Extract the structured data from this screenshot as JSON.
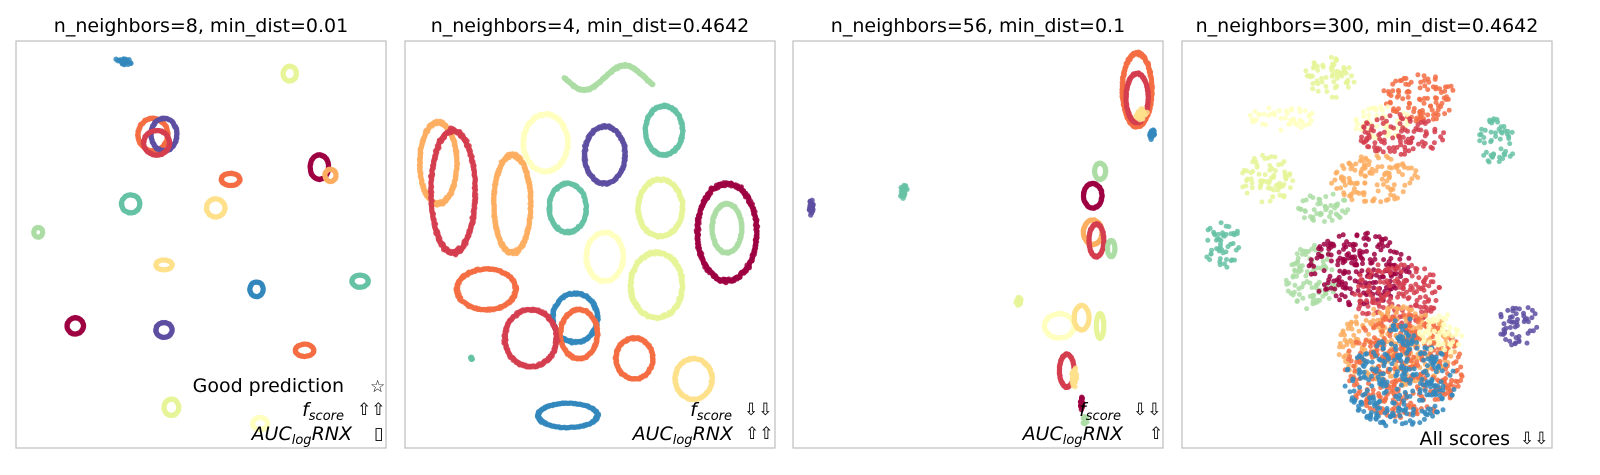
{
  "colors": [
    "#9e0142",
    "#d53e4f",
    "#f46d43",
    "#fdae61",
    "#fee08b",
    "#ffffbf",
    "#e6f598",
    "#abdda4",
    "#66c2a5",
    "#3288bd",
    "#5e4fa2"
  ],
  "chart_data": [
    {
      "type": "scatter",
      "title": "n_neighbors=8, min_dist=0.01",
      "xlim": [
        0,
        1
      ],
      "ylim": [
        0,
        1
      ],
      "annotations": [
        {
          "text": "Good prediction",
          "symbol": "☆"
        },
        {
          "base": "f",
          "sub": "score",
          "symbol": "⇧⇧"
        },
        {
          "base": "AUC",
          "sub": "log",
          "tail": "RNX",
          "symbol": "▯"
        }
      ],
      "clusters": [
        {
          "x": 0.29,
          "y": 0.95,
          "rx": 0.025,
          "ry": 0.012,
          "color": 9,
          "style": "blob"
        },
        {
          "x": 0.74,
          "y": 0.92,
          "rx": 0.018,
          "ry": 0.018,
          "color": 6,
          "style": "ring"
        },
        {
          "x": 0.37,
          "y": 0.77,
          "rx": 0.04,
          "ry": 0.04,
          "color": 2,
          "style": "ring"
        },
        {
          "x": 0.4,
          "y": 0.77,
          "rx": 0.035,
          "ry": 0.04,
          "color": 10,
          "style": "ring"
        },
        {
          "x": 0.38,
          "y": 0.75,
          "rx": 0.035,
          "ry": 0.03,
          "color": 1,
          "style": "ring"
        },
        {
          "x": 0.82,
          "y": 0.69,
          "rx": 0.025,
          "ry": 0.03,
          "color": 0,
          "style": "ring"
        },
        {
          "x": 0.85,
          "y": 0.67,
          "rx": 0.015,
          "ry": 0.015,
          "color": 3,
          "style": "ring"
        },
        {
          "x": 0.58,
          "y": 0.66,
          "rx": 0.025,
          "ry": 0.015,
          "color": 2,
          "style": "ring"
        },
        {
          "x": 0.31,
          "y": 0.6,
          "rx": 0.025,
          "ry": 0.022,
          "color": 8,
          "style": "ring"
        },
        {
          "x": 0.54,
          "y": 0.59,
          "rx": 0.025,
          "ry": 0.022,
          "color": 4,
          "style": "ring"
        },
        {
          "x": 0.06,
          "y": 0.53,
          "rx": 0.012,
          "ry": 0.012,
          "color": 7,
          "style": "ring"
        },
        {
          "x": 0.4,
          "y": 0.45,
          "rx": 0.022,
          "ry": 0.012,
          "color": 4,
          "style": "ring"
        },
        {
          "x": 0.65,
          "y": 0.39,
          "rx": 0.018,
          "ry": 0.018,
          "color": 9,
          "style": "ring"
        },
        {
          "x": 0.93,
          "y": 0.41,
          "rx": 0.022,
          "ry": 0.015,
          "color": 8,
          "style": "ring"
        },
        {
          "x": 0.16,
          "y": 0.3,
          "rx": 0.022,
          "ry": 0.02,
          "color": 0,
          "style": "ring"
        },
        {
          "x": 0.4,
          "y": 0.29,
          "rx": 0.022,
          "ry": 0.018,
          "color": 10,
          "style": "ring"
        },
        {
          "x": 0.78,
          "y": 0.24,
          "rx": 0.025,
          "ry": 0.015,
          "color": 2,
          "style": "ring"
        },
        {
          "x": 0.42,
          "y": 0.1,
          "rx": 0.02,
          "ry": 0.02,
          "color": 6,
          "style": "ring"
        },
        {
          "x": 0.66,
          "y": 0.06,
          "rx": 0.02,
          "ry": 0.015,
          "color": 5,
          "style": "ring"
        }
      ]
    },
    {
      "type": "scatter",
      "title": "n_neighbors=4, min_dist=0.4642",
      "xlim": [
        0,
        1
      ],
      "ylim": [
        0,
        1
      ],
      "annotations": [
        {
          "base": "f",
          "sub": "score",
          "symbol": "⇩⇩"
        },
        {
          "base": "AUC",
          "sub": "log",
          "tail": "RNX",
          "symbol": "⇧⇧"
        }
      ],
      "clusters": [
        {
          "x": 0.55,
          "y": 0.91,
          "rx": 0.12,
          "ry": 0.05,
          "color": 7,
          "style": "wave"
        },
        {
          "x": 0.7,
          "y": 0.78,
          "rx": 0.05,
          "ry": 0.06,
          "color": 8,
          "style": "ring"
        },
        {
          "x": 0.09,
          "y": 0.7,
          "rx": 0.05,
          "ry": 0.1,
          "color": 3,
          "style": "ring"
        },
        {
          "x": 0.13,
          "y": 0.63,
          "rx": 0.06,
          "ry": 0.15,
          "color": 1,
          "style": "ring"
        },
        {
          "x": 0.38,
          "y": 0.75,
          "rx": 0.06,
          "ry": 0.07,
          "color": 5,
          "style": "ring"
        },
        {
          "x": 0.54,
          "y": 0.72,
          "rx": 0.055,
          "ry": 0.07,
          "color": 10,
          "style": "ring"
        },
        {
          "x": 0.29,
          "y": 0.6,
          "rx": 0.05,
          "ry": 0.12,
          "color": 3,
          "style": "ring"
        },
        {
          "x": 0.44,
          "y": 0.59,
          "rx": 0.05,
          "ry": 0.06,
          "color": 8,
          "style": "ring"
        },
        {
          "x": 0.69,
          "y": 0.59,
          "rx": 0.06,
          "ry": 0.07,
          "color": 6,
          "style": "ring"
        },
        {
          "x": 0.87,
          "y": 0.53,
          "rx": 0.08,
          "ry": 0.12,
          "color": 0,
          "style": "ring"
        },
        {
          "x": 0.87,
          "y": 0.54,
          "rx": 0.04,
          "ry": 0.06,
          "color": 7,
          "style": "ring"
        },
        {
          "x": 0.54,
          "y": 0.47,
          "rx": 0.05,
          "ry": 0.06,
          "color": 5,
          "style": "ring"
        },
        {
          "x": 0.68,
          "y": 0.4,
          "rx": 0.07,
          "ry": 0.08,
          "color": 6,
          "style": "ring"
        },
        {
          "x": 0.22,
          "y": 0.39,
          "rx": 0.08,
          "ry": 0.05,
          "color": 2,
          "style": "ring"
        },
        {
          "x": 0.46,
          "y": 0.32,
          "rx": 0.06,
          "ry": 0.06,
          "color": 9,
          "style": "ring"
        },
        {
          "x": 0.47,
          "y": 0.28,
          "rx": 0.05,
          "ry": 0.06,
          "color": 2,
          "style": "ring"
        },
        {
          "x": 0.34,
          "y": 0.27,
          "rx": 0.07,
          "ry": 0.07,
          "color": 1,
          "style": "ring"
        },
        {
          "x": 0.62,
          "y": 0.22,
          "rx": 0.05,
          "ry": 0.05,
          "color": 2,
          "style": "ring"
        },
        {
          "x": 0.78,
          "y": 0.17,
          "rx": 0.05,
          "ry": 0.05,
          "color": 4,
          "style": "ring"
        },
        {
          "x": 0.44,
          "y": 0.08,
          "rx": 0.08,
          "ry": 0.03,
          "color": 9,
          "style": "ring"
        },
        {
          "x": 0.18,
          "y": 0.22,
          "rx": 0.005,
          "ry": 0.005,
          "color": 8,
          "style": "blob"
        }
      ]
    },
    {
      "type": "scatter",
      "title": "n_neighbors=56, min_dist=0.1",
      "xlim": [
        0,
        1
      ],
      "ylim": [
        0,
        1
      ],
      "annotations": [
        {
          "base": "f",
          "sub": "score",
          "symbol": "⇩⇩"
        },
        {
          "base": "AUC",
          "sub": "log",
          "tail": "RNX",
          "symbol": "⇧"
        }
      ],
      "clusters": [
        {
          "x": 0.93,
          "y": 0.88,
          "rx": 0.04,
          "ry": 0.09,
          "color": 2,
          "style": "ring"
        },
        {
          "x": 0.93,
          "y": 0.86,
          "rx": 0.03,
          "ry": 0.06,
          "color": 1,
          "style": "ring"
        },
        {
          "x": 0.94,
          "y": 0.82,
          "rx": 0.02,
          "ry": 0.02,
          "color": 4,
          "style": "blob"
        },
        {
          "x": 0.97,
          "y": 0.77,
          "rx": 0.01,
          "ry": 0.015,
          "color": 9,
          "style": "blob"
        },
        {
          "x": 0.83,
          "y": 0.68,
          "rx": 0.015,
          "ry": 0.02,
          "color": 7,
          "style": "ring"
        },
        {
          "x": 0.81,
          "y": 0.62,
          "rx": 0.025,
          "ry": 0.03,
          "color": 0,
          "style": "ring"
        },
        {
          "x": 0.81,
          "y": 0.53,
          "rx": 0.025,
          "ry": 0.03,
          "color": 3,
          "style": "ring"
        },
        {
          "x": 0.82,
          "y": 0.51,
          "rx": 0.02,
          "ry": 0.04,
          "color": 1,
          "style": "ring"
        },
        {
          "x": 0.86,
          "y": 0.49,
          "rx": 0.01,
          "ry": 0.02,
          "color": 7,
          "style": "ring"
        },
        {
          "x": 0.05,
          "y": 0.59,
          "rx": 0.008,
          "ry": 0.025,
          "color": 10,
          "style": "blob"
        },
        {
          "x": 0.3,
          "y": 0.63,
          "rx": 0.01,
          "ry": 0.02,
          "color": 8,
          "style": "blob"
        },
        {
          "x": 0.61,
          "y": 0.36,
          "rx": 0.01,
          "ry": 0.015,
          "color": 6,
          "style": "blob"
        },
        {
          "x": 0.72,
          "y": 0.3,
          "rx": 0.04,
          "ry": 0.03,
          "color": 5,
          "style": "ring"
        },
        {
          "x": 0.78,
          "y": 0.32,
          "rx": 0.02,
          "ry": 0.03,
          "color": 4,
          "style": "ring"
        },
        {
          "x": 0.83,
          "y": 0.3,
          "rx": 0.01,
          "ry": 0.03,
          "color": 6,
          "style": "ring"
        },
        {
          "x": 0.74,
          "y": 0.19,
          "rx": 0.02,
          "ry": 0.04,
          "color": 1,
          "style": "ring"
        },
        {
          "x": 0.76,
          "y": 0.17,
          "rx": 0.01,
          "ry": 0.03,
          "color": 4,
          "style": "blob"
        },
        {
          "x": 0.78,
          "y": 0.11,
          "rx": 0.005,
          "ry": 0.02,
          "color": 0,
          "style": "blob"
        },
        {
          "x": 0.79,
          "y": 0.07,
          "rx": 0.008,
          "ry": 0.015,
          "color": 7,
          "style": "blob"
        }
      ]
    },
    {
      "type": "scatter",
      "title": "n_neighbors=300, min_dist=0.4642",
      "xlim": [
        0,
        1
      ],
      "ylim": [
        0,
        1
      ],
      "annotations": [
        {
          "text": "All scores",
          "symbol": "⇩⇩"
        }
      ],
      "clusters": [
        {
          "x": 0.4,
          "y": 0.91,
          "rx": 0.07,
          "ry": 0.05,
          "color": 6,
          "style": "cloud"
        },
        {
          "x": 0.64,
          "y": 0.86,
          "rx": 0.1,
          "ry": 0.06,
          "color": 2,
          "style": "cloud"
        },
        {
          "x": 0.54,
          "y": 0.8,
          "rx": 0.08,
          "ry": 0.04,
          "color": 5,
          "style": "cloud"
        },
        {
          "x": 0.27,
          "y": 0.81,
          "rx": 0.09,
          "ry": 0.03,
          "color": 5,
          "style": "cloud"
        },
        {
          "x": 0.59,
          "y": 0.77,
          "rx": 0.12,
          "ry": 0.05,
          "color": 1,
          "style": "cloud"
        },
        {
          "x": 0.85,
          "y": 0.75,
          "rx": 0.05,
          "ry": 0.06,
          "color": 8,
          "style": "cloud"
        },
        {
          "x": 0.23,
          "y": 0.66,
          "rx": 0.07,
          "ry": 0.06,
          "color": 6,
          "style": "cloud"
        },
        {
          "x": 0.52,
          "y": 0.66,
          "rx": 0.12,
          "ry": 0.06,
          "color": 3,
          "style": "cloud"
        },
        {
          "x": 0.38,
          "y": 0.59,
          "rx": 0.07,
          "ry": 0.04,
          "color": 7,
          "style": "cloud"
        },
        {
          "x": 0.11,
          "y": 0.5,
          "rx": 0.05,
          "ry": 0.06,
          "color": 8,
          "style": "cloud"
        },
        {
          "x": 0.35,
          "y": 0.42,
          "rx": 0.07,
          "ry": 0.08,
          "color": 7,
          "style": "cloud"
        },
        {
          "x": 0.48,
          "y": 0.44,
          "rx": 0.14,
          "ry": 0.09,
          "color": 0,
          "style": "cloud"
        },
        {
          "x": 0.58,
          "y": 0.38,
          "rx": 0.12,
          "ry": 0.08,
          "color": 1,
          "style": "cloud"
        },
        {
          "x": 0.58,
          "y": 0.25,
          "rx": 0.16,
          "ry": 0.1,
          "color": 3,
          "style": "cloud"
        },
        {
          "x": 0.6,
          "y": 0.2,
          "rx": 0.16,
          "ry": 0.13,
          "color": 2,
          "style": "cloud"
        },
        {
          "x": 0.59,
          "y": 0.16,
          "rx": 0.15,
          "ry": 0.11,
          "color": 9,
          "style": "cloud"
        },
        {
          "x": 0.6,
          "y": 0.29,
          "rx": 0.04,
          "ry": 0.03,
          "color": 9,
          "style": "cloud"
        },
        {
          "x": 0.7,
          "y": 0.28,
          "rx": 0.06,
          "ry": 0.05,
          "color": 5,
          "style": "cloud"
        },
        {
          "x": 0.91,
          "y": 0.3,
          "rx": 0.06,
          "ry": 0.05,
          "color": 10,
          "style": "cloud"
        }
      ]
    }
  ]
}
